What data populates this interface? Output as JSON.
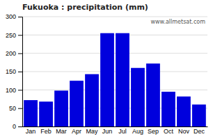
{
  "chart_data": {
    "type": "bar",
    "title": "Fukuoka : precipitation (mm)",
    "categories": [
      "Jan",
      "Feb",
      "Mar",
      "Apr",
      "May",
      "Jun",
      "Jul",
      "Aug",
      "Sep",
      "Oct",
      "Nov",
      "Dec"
    ],
    "values": [
      72,
      68,
      98,
      125,
      143,
      255,
      255,
      160,
      172,
      95,
      82,
      60
    ],
    "color": "#0000dd",
    "ylim": [
      0,
      300
    ],
    "yticks": [
      0,
      50,
      100,
      150,
      200,
      250,
      300
    ],
    "grid": true,
    "annotations": [
      "www.allmetsat.com"
    ]
  }
}
